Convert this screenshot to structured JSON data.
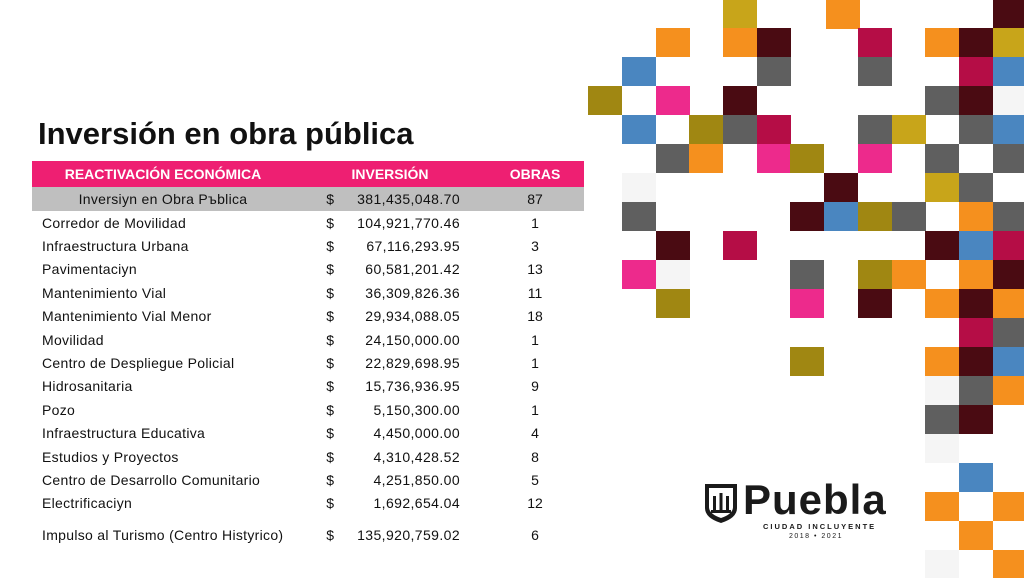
{
  "title": "Inversión en obra pública",
  "table": {
    "headers": [
      "REACTIVACIÓN ECONÓMICA",
      "INVERSIÓN",
      "OBRAS"
    ],
    "total": {
      "name": "Inversiyn en Obra Pъblica",
      "currency": "$",
      "amount": "381,435,048.70",
      "obras": "87"
    },
    "rows": [
      {
        "name": "Corredor de Movilidad",
        "currency": "$",
        "amount": "104,921,770.46",
        "obras": "1"
      },
      {
        "name": "Infraestructura Urbana",
        "currency": "$",
        "amount": "67,116,293.95",
        "obras": "3"
      },
      {
        "name": "Pavimentaciyn",
        "currency": "$",
        "amount": "60,581,201.42",
        "obras": "13"
      },
      {
        "name": "Mantenimiento Vial",
        "currency": "$",
        "amount": "36,309,826.36",
        "obras": "11"
      },
      {
        "name": "Mantenimiento Vial Menor",
        "currency": "$",
        "amount": "29,934,088.05",
        "obras": "18"
      },
      {
        "name": "Movilidad",
        "currency": "$",
        "amount": "24,150,000.00",
        "obras": "1"
      },
      {
        "name": "Centro de Despliegue Policial",
        "currency": "$",
        "amount": "22,829,698.95",
        "obras": "1"
      },
      {
        "name": "Hidrosanitaria",
        "currency": "$",
        "amount": "15,736,936.95",
        "obras": "9"
      },
      {
        "name": "Pozo",
        "currency": "$",
        "amount": "5,150,300.00",
        "obras": "1"
      },
      {
        "name": "Infraestructura Educativa",
        "currency": "$",
        "amount": "4,450,000.00",
        "obras": "4"
      },
      {
        "name": "Estudios y Proyectos",
        "currency": "$",
        "amount": "4,310,428.52",
        "obras": "8"
      },
      {
        "name": "Centro de Desarrollo Comunitario",
        "currency": "$",
        "amount": "4,251,850.00",
        "obras": "5"
      },
      {
        "name": "Electrificaciyn",
        "currency": "$",
        "amount": "1,692,654.04",
        "obras": "12"
      },
      {
        "name": "Impulso al Turismo (Centro Histyrico)",
        "currency": "$",
        "amount": "135,920,759.02",
        "obras": "6"
      }
    ]
  },
  "logo": {
    "word": "Puebla",
    "tagline": "CIUDAD INCLUYENTE",
    "years": "2018 • 2021"
  },
  "colors": {
    "header_bg": "#ee1f72",
    "total_bg": "#bfbfbf",
    "mosaic": [
      "#c8a51a",
      "#f5901e",
      "#4a0b12",
      "#b50d46",
      "#4a86c0",
      "#a08712",
      "#ed2a8c",
      "#5f5f5f",
      "#f5f5f5"
    ]
  }
}
